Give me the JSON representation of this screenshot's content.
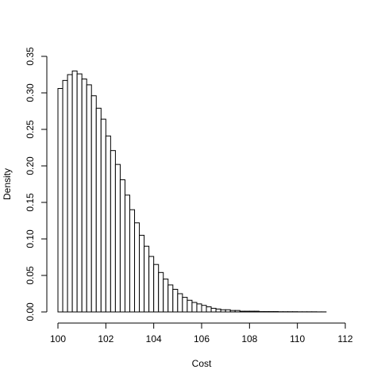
{
  "chart_data": {
    "type": "histogram",
    "title": "",
    "xlabel": "Cost",
    "ylabel": "Density",
    "xlim": [
      100,
      112
    ],
    "ylim": [
      0,
      0.35
    ],
    "x_ticks": [
      100,
      102,
      104,
      106,
      108,
      110,
      112
    ],
    "y_ticks": [
      "0.00",
      "0.05",
      "0.10",
      "0.15",
      "0.20",
      "0.25",
      "0.30",
      "0.35"
    ],
    "bin_start": 100,
    "bin_width": 0.2,
    "values": [
      0.306,
      0.317,
      0.325,
      0.33,
      0.326,
      0.319,
      0.311,
      0.296,
      0.279,
      0.264,
      0.241,
      0.221,
      0.202,
      0.181,
      0.16,
      0.14,
      0.122,
      0.105,
      0.09,
      0.076,
      0.065,
      0.054,
      0.045,
      0.037,
      0.031,
      0.025,
      0.02,
      0.016,
      0.013,
      0.011,
      0.009,
      0.007,
      0.005,
      0.004,
      0.003,
      0.003,
      0.002,
      0.002,
      0.001,
      0.001,
      0.001,
      0.001,
      0.0005,
      0.0005,
      0.0005,
      0.0005,
      0.0003,
      0.0003,
      0.0003,
      0.0003,
      0.0002,
      0.0002,
      0.0002,
      0.0002,
      0.0001,
      0.0001
    ],
    "grid": false,
    "legend": "none",
    "bar_fill": "#ffffff",
    "bar_stroke": "#000000"
  }
}
